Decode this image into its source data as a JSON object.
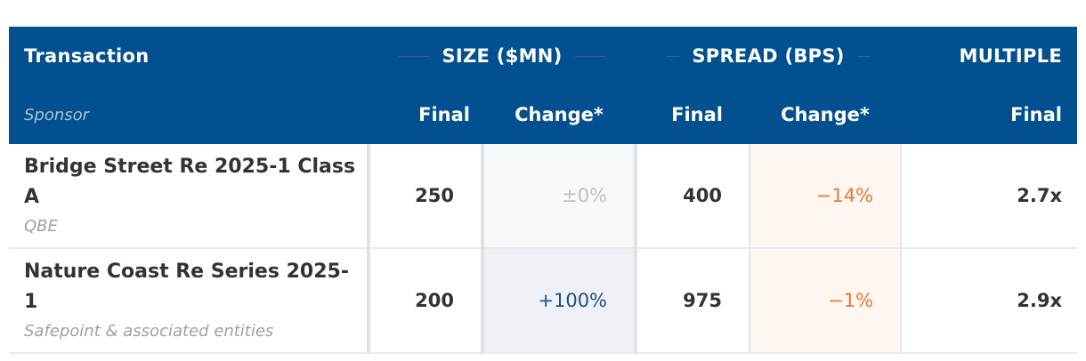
{
  "header": {
    "transaction": "Transaction",
    "size_group": "SIZE ($MN)",
    "spread_group": "SPREAD (BPS)",
    "multiple_group": "MULTIPLE",
    "sponsor": "Sponsor",
    "size_final": "Final",
    "size_change": "Change*",
    "spread_final": "Final",
    "spread_change": "Change*",
    "multiple_final": "Final"
  },
  "rows": [
    {
      "name": "Bridge Street Re 2025-1 Class A",
      "sponsor": "QBE",
      "size_final": "250",
      "size_change": "±0%",
      "spread_final": "400",
      "spread_change": "−14%",
      "multiple": "2.7x"
    },
    {
      "name": "Nature Coast Re Series 2025-1",
      "sponsor": "Safepoint & associated entities",
      "size_final": "200",
      "size_change": "+100%",
      "spread_final": "975",
      "spread_change": "−1%",
      "multiple": "2.9x"
    }
  ],
  "colors": {
    "header_bg": "#02508f",
    "positive": "#1f4f86",
    "negative": "#e8792d",
    "neutral": "#c0c0c0"
  }
}
